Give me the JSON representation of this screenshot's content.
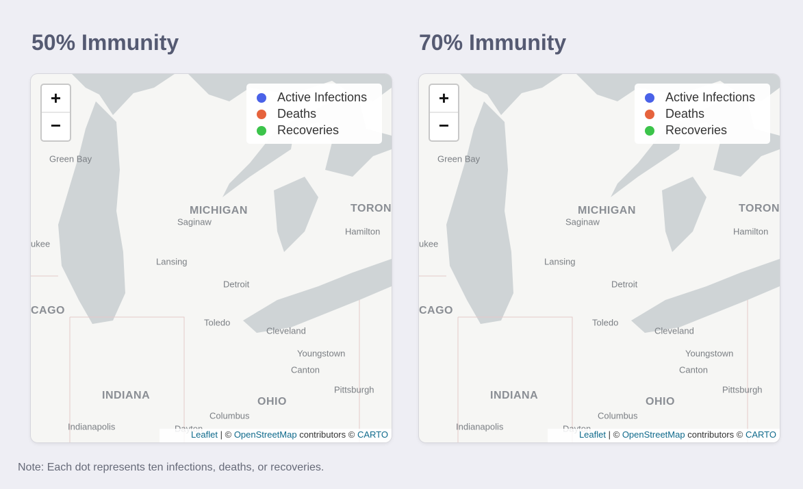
{
  "maps": [
    {
      "title": "50% Immunity"
    },
    {
      "title": "70% Immunity"
    }
  ],
  "zoom": {
    "in": "+",
    "out": "−"
  },
  "legend": [
    "Active Infections",
    "Deaths",
    "Recoveries"
  ],
  "attribution": [
    "Leaflet",
    "| ©",
    "OpenStreetMap",
    "contributors ©",
    "CARTO"
  ],
  "place_labels": [
    "Green Bay",
    "MICHIGAN",
    "Saginaw",
    "TORON",
    "Hamilton",
    "ukee",
    "Lansing",
    "Detroit",
    "CAGO",
    "Toledo",
    "Cleveland",
    "Youngstown",
    "Canton",
    "INDIANA",
    "OHIO",
    "Pittsburgh",
    "Columbus",
    "Indianapolis",
    "Dayton"
  ],
  "note": "Note: Each dot represents ten infections, deaths, or recoveries."
}
